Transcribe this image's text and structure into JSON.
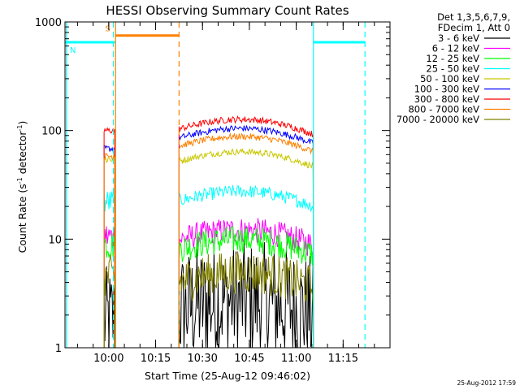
{
  "chart_data": {
    "type": "line",
    "title": "HESSI Observing Summary Count Rates",
    "xlabel": "Start Time (25-Aug-12 09:46:02)",
    "ylabel_main": "Count Rate (s",
    "ylabel_sup1": "-1",
    "ylabel_mid": " detector",
    "ylabel_sup2": "-1",
    "ylabel_end": ")",
    "yscale": "log",
    "ylim": [
      1,
      1000
    ],
    "xlim_minutes": [
      0,
      104
    ],
    "x_ticks": [
      {
        "label": "10:00",
        "minutes": 14
      },
      {
        "label": "10:15",
        "minutes": 29
      },
      {
        "label": "10:30",
        "minutes": 44
      },
      {
        "label": "10:45",
        "minutes": 59
      },
      {
        "label": "11:00",
        "minutes": 74
      },
      {
        "label": "11:15",
        "minutes": 89
      }
    ],
    "y_ticks": [
      {
        "label": "1",
        "value": 1
      },
      {
        "label": "10",
        "value": 10
      },
      {
        "label": "100",
        "value": 100
      },
      {
        "label": "1000",
        "value": 1000
      }
    ],
    "legend_header": [
      "Det 1,3,5,6,7,9,",
      "FDecim 1, Att 0"
    ],
    "legend_placement": "right",
    "timestamp": "25-Aug-2012 17:59",
    "series": [
      {
        "name": "3 - 6 keV",
        "color": "#000000",
        "segments": [
          {
            "start": 12.5,
            "end": 16,
            "level": 1.8,
            "noise": 0.5
          },
          {
            "start": 36.5,
            "end": 79.5,
            "level": 2.5,
            "noise": 0.55
          }
        ]
      },
      {
        "name": "6 - 12 keV",
        "color": "#ff00ff",
        "segments": [
          {
            "start": 12.5,
            "end": 16,
            "level": 10.5,
            "noise": 0.15
          },
          {
            "start": 36.5,
            "end": 79.5,
            "level": 11,
            "noise": 0.12
          }
        ]
      },
      {
        "name": "12 - 25 keV",
        "color": "#00ff00",
        "segments": [
          {
            "start": 12.5,
            "end": 16,
            "level": 9,
            "noise": 0.15
          },
          {
            "start": 36.5,
            "end": 79.5,
            "level": 9,
            "noise": 0.13
          }
        ]
      },
      {
        "name": "25 - 50 keV",
        "color": "#00ffff",
        "segments": [
          {
            "start": 12.5,
            "end": 16,
            "level": 22,
            "noise": 0.12
          },
          {
            "start": 36.5,
            "end": 79.5,
            "level": 25,
            "noise": 0.06
          }
        ]
      },
      {
        "name": "50 - 100 keV",
        "color": "#c8c800",
        "segments": [
          {
            "start": 12.5,
            "end": 16,
            "level": 55,
            "noise": 0.05
          },
          {
            "start": 36.5,
            "end": 79.5,
            "level": 58,
            "noise": 0.03
          }
        ]
      },
      {
        "name": "100 - 300 keV",
        "color": "#0000ff",
        "segments": [
          {
            "start": 12.5,
            "end": 16,
            "level": 68,
            "noise": 0.03
          },
          {
            "start": 36.5,
            "end": 79.5,
            "level": 95,
            "noise": 0.03
          }
        ]
      },
      {
        "name": "300 - 800 keV",
        "color": "#ff0000",
        "segments": [
          {
            "start": 12.5,
            "end": 16,
            "level": 100,
            "noise": 0.03
          },
          {
            "start": 36.5,
            "end": 79.5,
            "level": 115,
            "noise": 0.03
          }
        ]
      },
      {
        "name": "800 - 7000 keV",
        "color": "#ff8000",
        "segments": [
          {
            "start": 12.5,
            "end": 16,
            "level": 58,
            "noise": 0.03
          },
          {
            "start": 36.5,
            "end": 79.5,
            "level": 80,
            "noise": 0.03
          }
        ]
      },
      {
        "name": "7000 - 20000 keV",
        "color": "#808000",
        "segments": [
          {
            "start": 12.5,
            "end": 16,
            "level": 4.5,
            "noise": 0.2
          },
          {
            "start": 36.5,
            "end": 79.5,
            "level": 4.5,
            "noise": 0.2
          }
        ]
      }
    ],
    "flags": [
      {
        "label": "S",
        "color": "#ff8000",
        "start": 16,
        "end": 36.5,
        "level": 750
      },
      {
        "label": "N",
        "color": "#00ffff",
        "start": 0,
        "end": 16,
        "level": 650
      },
      {
        "label": "",
        "color": "#00ffff",
        "start": 79.5,
        "end": 96,
        "level": 650
      }
    ],
    "vlines": [
      {
        "minutes": 15.5,
        "color": "#00ffff",
        "style": "dashed"
      },
      {
        "minutes": 16.2,
        "color": "#ff8000",
        "style": "solid"
      },
      {
        "minutes": 36.5,
        "color": "#ff8000",
        "style": "dashed"
      },
      {
        "minutes": 79.5,
        "color": "#00ffff",
        "style": "solid"
      },
      {
        "minutes": 96,
        "color": "#00ffff",
        "style": "dashed"
      },
      {
        "minutes": 0.5,
        "color": "#00ffff",
        "style": "solid"
      }
    ]
  }
}
